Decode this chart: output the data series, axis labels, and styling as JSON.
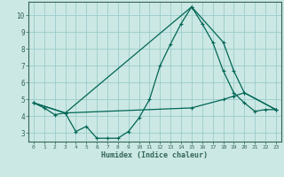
{
  "title": "",
  "xlabel": "Humidex (Indice chaleur)",
  "bg_color": "#cce8e4",
  "grid_color": "#99cccc",
  "line_color": "#006655",
  "xlim": [
    -0.5,
    23.5
  ],
  "ylim": [
    2.5,
    10.8
  ],
  "yticks": [
    3,
    4,
    5,
    6,
    7,
    8,
    9,
    10
  ],
  "xticks": [
    0,
    1,
    2,
    3,
    4,
    5,
    6,
    7,
    8,
    9,
    10,
    11,
    12,
    13,
    14,
    15,
    16,
    17,
    18,
    19,
    20,
    21,
    22,
    23
  ],
  "line1_x": [
    0,
    1,
    2,
    3,
    4,
    5,
    6,
    7,
    8,
    9,
    10,
    11,
    12,
    13,
    14,
    15,
    16,
    17,
    18,
    19,
    20,
    21,
    22,
    23
  ],
  "line1_y": [
    4.8,
    4.5,
    4.1,
    4.2,
    3.1,
    3.4,
    2.7,
    2.7,
    2.7,
    3.1,
    3.9,
    5.0,
    7.0,
    8.3,
    9.5,
    10.5,
    9.5,
    8.4,
    6.7,
    5.4,
    4.8,
    4.3,
    4.4,
    4.4
  ],
  "line2_x": [
    0,
    3,
    15,
    18,
    19,
    20,
    23
  ],
  "line2_y": [
    4.8,
    4.2,
    10.5,
    8.4,
    6.7,
    5.4,
    4.4
  ],
  "line3_x": [
    0,
    3,
    15,
    18,
    19,
    20,
    23
  ],
  "line3_y": [
    4.8,
    4.2,
    4.5,
    5.0,
    5.2,
    5.4,
    4.4
  ]
}
